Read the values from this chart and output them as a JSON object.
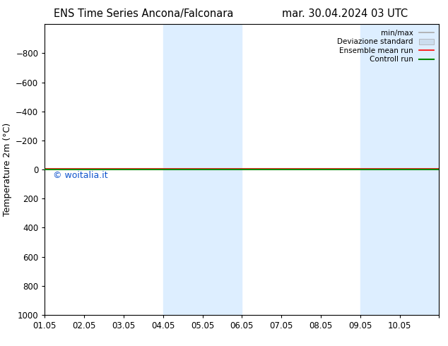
{
  "title_left": "ENS Time Series Ancona/Falconara",
  "title_right": "mar. 30.04.2024 03 UTC",
  "ylabel": "Temperature 2m (°C)",
  "ylim_bottom": 1000,
  "ylim_top": -1000,
  "yticks": [
    -800,
    -600,
    -400,
    -200,
    0,
    200,
    400,
    600,
    800,
    1000
  ],
  "x_start": 0,
  "x_end": 10,
  "xtick_positions": [
    0,
    1,
    2,
    3,
    4,
    5,
    6,
    7,
    8,
    9,
    10
  ],
  "xtick_labels": [
    "01.05",
    "02.05",
    "03.05",
    "04.05",
    "05.05",
    "06.05",
    "07.05",
    "08.05",
    "09.05",
    "10.05",
    ""
  ],
  "shaded_bands": [
    {
      "x_start": 3.0,
      "x_end": 5.0
    },
    {
      "x_start": 8.0,
      "x_end": 10.0
    }
  ],
  "control_run_y": 0,
  "ensemble_mean_y": -5,
  "watermark": "© woitalia.it",
  "bg_color": "#ffffff",
  "shaded_color": "#ddeeff",
  "legend_entries": [
    {
      "label": "min/max",
      "color": "#aaaaaa",
      "lw": 1.2
    },
    {
      "label": "Deviazione standard",
      "color": "#ccddee",
      "lw": 6
    },
    {
      "label": "Ensemble mean run",
      "color": "#ff0000",
      "lw": 1.2
    },
    {
      "label": "Controll run",
      "color": "#008800",
      "lw": 1.5
    }
  ],
  "title_fontsize": 10.5,
  "axis_label_fontsize": 9,
  "tick_fontsize": 8.5,
  "watermark_fontsize": 9,
  "watermark_color": "#1155cc"
}
